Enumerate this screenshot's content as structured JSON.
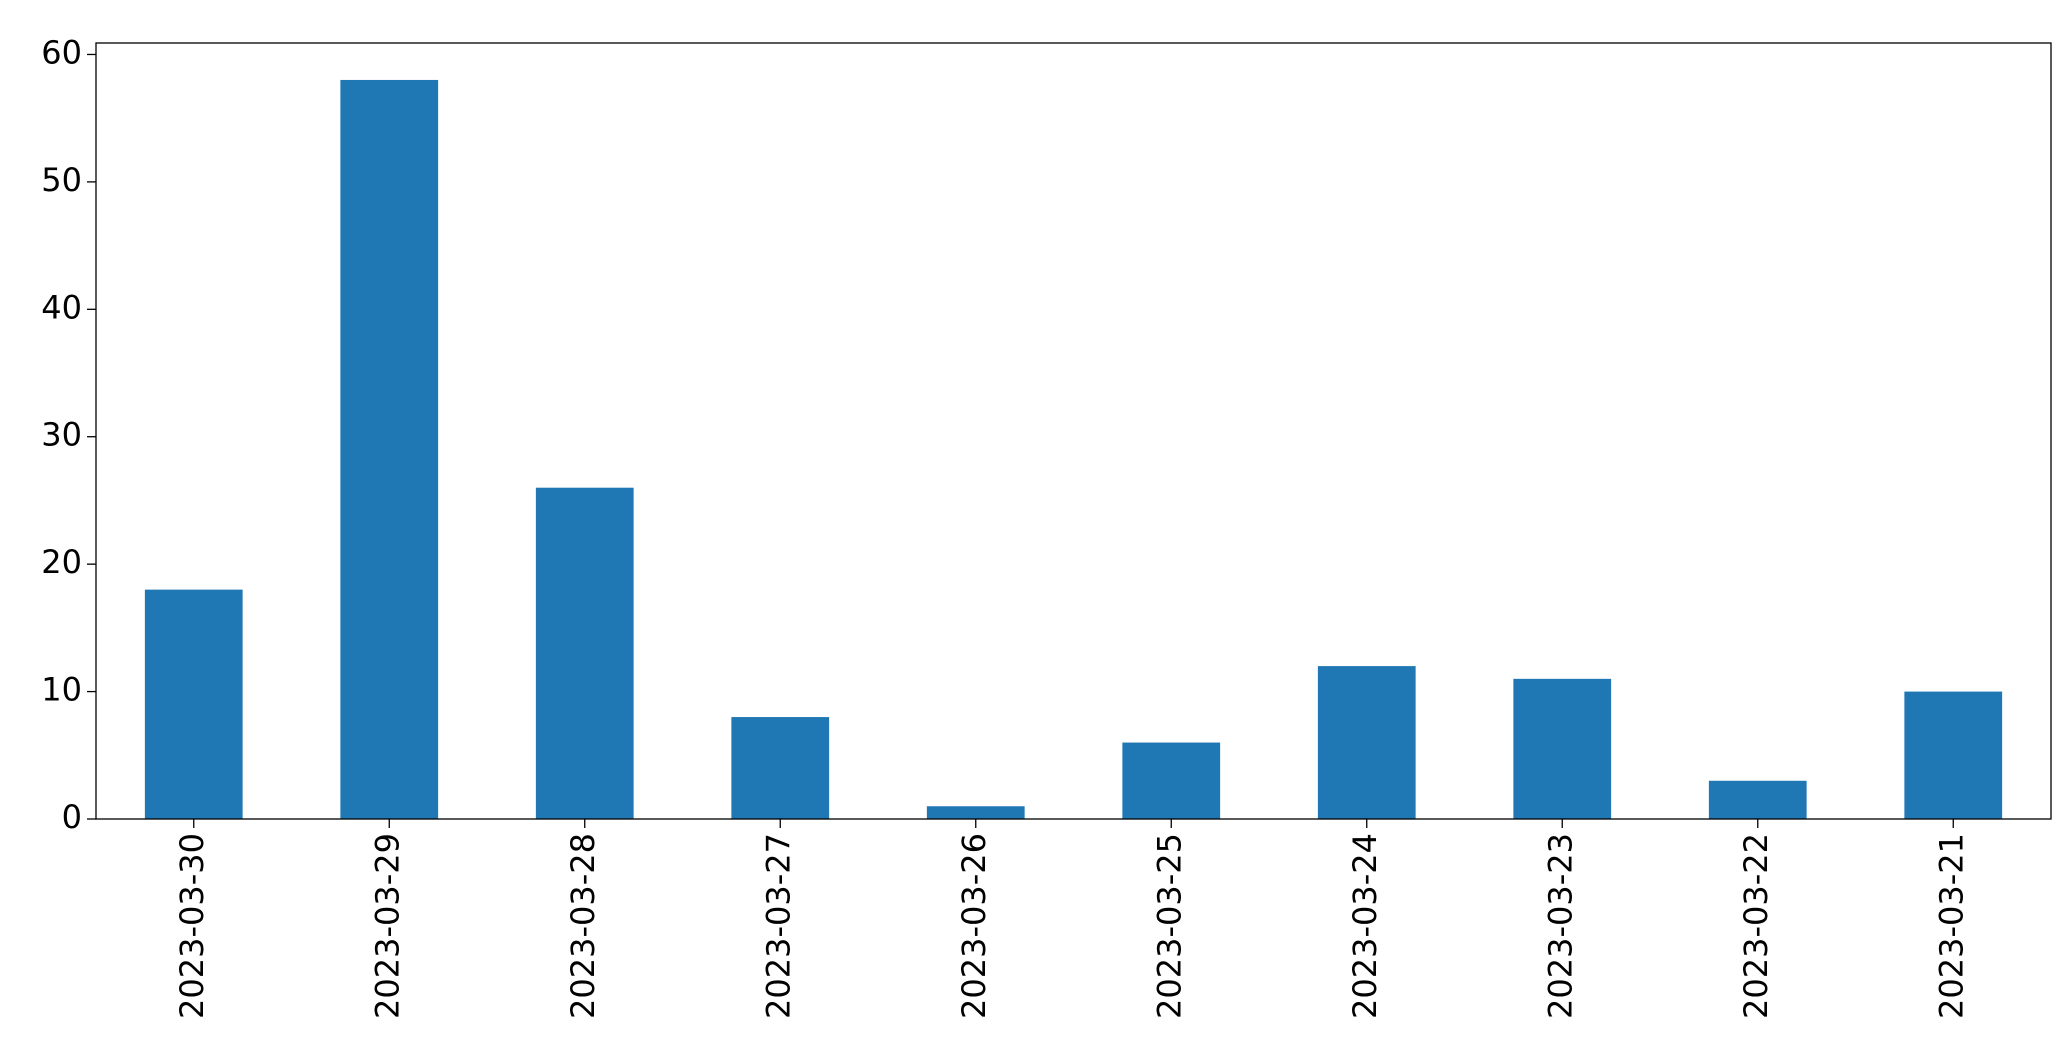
{
  "chart_data": {
    "type": "bar",
    "categories": [
      "2023-03-30",
      "2023-03-29",
      "2023-03-28",
      "2023-03-27",
      "2023-03-26",
      "2023-03-25",
      "2023-03-24",
      "2023-03-23",
      "2023-03-22",
      "2023-03-21"
    ],
    "values": [
      18,
      58,
      26,
      8,
      1,
      6,
      12,
      11,
      3,
      10
    ],
    "color": "#1f77b4",
    "ylim": [
      0,
      60.9
    ],
    "yticks": [
      0,
      10,
      20,
      30,
      40,
      50,
      60
    ],
    "grid": false
  }
}
